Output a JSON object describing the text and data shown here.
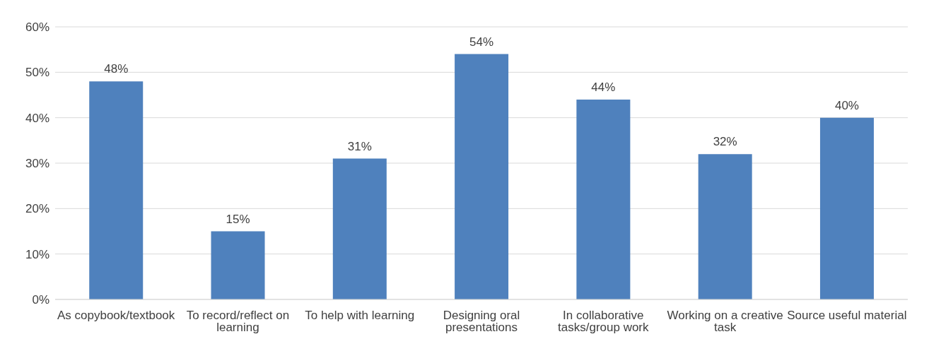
{
  "chart_data": {
    "type": "bar",
    "categories": [
      "As copybook/textbook",
      "To record/reflect on learning",
      "To help with learning",
      "Designing oral presentations",
      "In collaborative tasks/group work",
      "Working on a creative task",
      "Source useful material"
    ],
    "values": [
      48,
      15,
      31,
      54,
      44,
      32,
      40
    ],
    "value_labels": [
      "48%",
      "15%",
      "31%",
      "54%",
      "44%",
      "32%",
      "40%"
    ],
    "color": "#4f81bd",
    "ylim": [
      0,
      60
    ],
    "yticks": [
      {
        "value": 0,
        "label": "0%"
      },
      {
        "value": 10,
        "label": "10%"
      },
      {
        "value": 20,
        "label": "20%"
      },
      {
        "value": 30,
        "label": "30%"
      },
      {
        "value": 40,
        "label": "40%"
      },
      {
        "value": 50,
        "label": "50%"
      },
      {
        "value": 60,
        "label": "60%"
      }
    ],
    "grid": "y"
  }
}
